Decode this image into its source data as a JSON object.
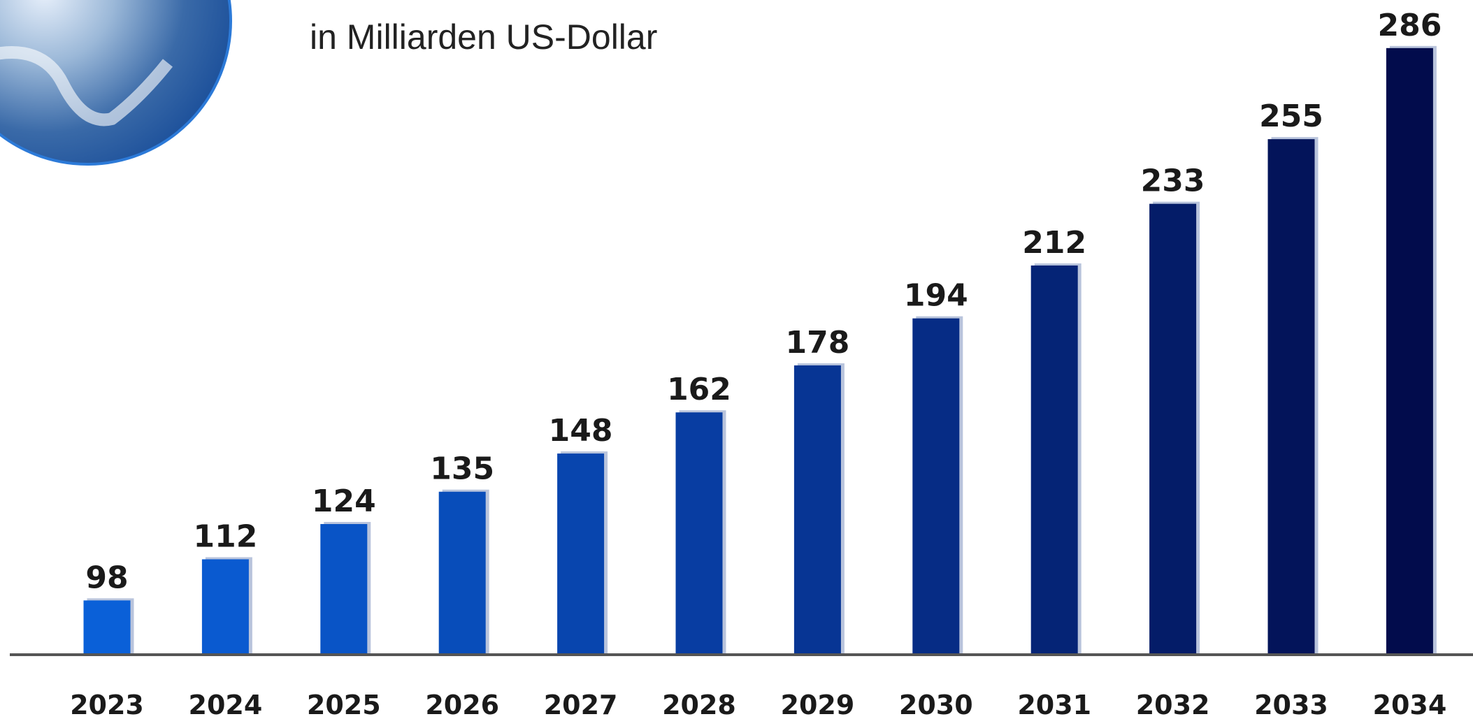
{
  "chart_data": {
    "type": "bar",
    "subtitle": "in Milliarden US-Dollar",
    "categories": [
      "2023",
      "2024",
      "2025",
      "2026",
      "2027",
      "2028",
      "2029",
      "2030",
      "2031",
      "2032",
      "2033",
      "2034"
    ],
    "values": [
      98,
      112,
      124,
      135,
      148,
      162,
      178,
      194,
      212,
      233,
      255,
      286
    ],
    "colors": [
      "#0a60d8",
      "#0a5ad0",
      "#0954c6",
      "#084dba",
      "#0845ae",
      "#083da2",
      "#073594",
      "#062c85",
      "#052476",
      "#041c68",
      "#03145a",
      "#020c4c"
    ],
    "ylim": [
      80,
      290
    ]
  }
}
